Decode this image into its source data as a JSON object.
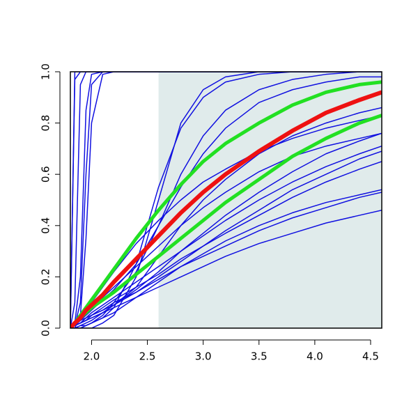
{
  "chart_data": {
    "type": "line",
    "x": [
      1.81,
      1.85,
      1.9,
      1.95,
      2.0,
      2.1,
      2.2,
      2.4,
      2.6,
      2.8,
      3.0,
      3.2,
      3.5,
      3.8,
      4.1,
      4.4,
      4.6
    ],
    "xlim": [
      1.81,
      4.6
    ],
    "ylim": [
      0,
      1
    ],
    "xticks": [
      {
        "value": 2,
        "label": "2.0"
      },
      2.5,
      {
        "value": 3,
        "label": "3.0"
      },
      3.5,
      {
        "value": 4,
        "label": "4.0"
      },
      4.5
    ],
    "yticks": [
      {
        "value": 0,
        "label": "0.0"
      },
      0.2,
      0.4,
      0.6,
      0.8,
      {
        "value": 1,
        "label": "1.0"
      }
    ],
    "highlight_xrange": [
      2.6,
      4.6
    ],
    "highlight_color": "#e0ebeb",
    "series": [
      {
        "color": "#1010e0",
        "line_width": 1.5,
        "values": [
          0,
          1,
          1,
          1,
          1,
          1,
          1,
          1,
          1,
          1,
          1,
          1,
          1,
          1,
          1,
          1,
          1
        ]
      },
      {
        "color": "#1010e0",
        "line_width": 1.5,
        "values": [
          0,
          0.97,
          1,
          1,
          1,
          1,
          1,
          1,
          1,
          1,
          1,
          1,
          1,
          1,
          1,
          1,
          1
        ]
      },
      {
        "color": "#1010e0",
        "line_width": 1.5,
        "values": [
          0,
          0.1,
          0.95,
          1,
          1,
          1,
          1,
          1,
          1,
          1,
          1,
          1,
          1,
          1,
          1,
          1,
          1
        ]
      },
      {
        "color": "#1010e0",
        "line_width": 1.5,
        "values": [
          0,
          0.02,
          0.2,
          0.85,
          0.99,
          1,
          1,
          1,
          1,
          1,
          1,
          1,
          1,
          1,
          1,
          1,
          1
        ]
      },
      {
        "color": "#1010e0",
        "line_width": 1.5,
        "values": [
          0,
          0.01,
          0.1,
          0.6,
          0.95,
          1,
          1,
          1,
          1,
          1,
          1,
          1,
          1,
          1,
          1,
          1,
          1
        ]
      },
      {
        "color": "#1010e0",
        "line_width": 1.5,
        "values": [
          0,
          0,
          0.05,
          0.35,
          0.8,
          0.99,
          1,
          1,
          1,
          1,
          1,
          1,
          1,
          1,
          1,
          1,
          1
        ]
      },
      {
        "color": "#1010e0",
        "line_width": 1.5,
        "values": [
          0,
          0,
          0,
          0,
          0,
          0.02,
          0.05,
          0.2,
          0.5,
          0.8,
          0.93,
          0.98,
          1,
          1,
          1,
          1,
          1
        ]
      },
      {
        "color": "#1010e0",
        "line_width": 1.5,
        "values": [
          0,
          0,
          0,
          0.01,
          0.02,
          0.04,
          0.08,
          0.25,
          0.55,
          0.78,
          0.9,
          0.96,
          0.99,
          1,
          1,
          1,
          1
        ]
      },
      {
        "color": "#1010e0",
        "line_width": 1.5,
        "values": [
          0,
          0,
          0,
          0.01,
          0.02,
          0.05,
          0.1,
          0.22,
          0.4,
          0.6,
          0.75,
          0.85,
          0.93,
          0.97,
          0.99,
          1,
          1
        ]
      },
      {
        "color": "#1010e0",
        "line_width": 1.5,
        "values": [
          0,
          0.01,
          0.03,
          0.05,
          0.07,
          0.11,
          0.15,
          0.25,
          0.4,
          0.55,
          0.68,
          0.78,
          0.88,
          0.93,
          0.96,
          0.98,
          0.98
        ]
      },
      {
        "color": "#1010e0",
        "line_width": 1.5,
        "values": [
          0,
          0.02,
          0.04,
          0.06,
          0.08,
          0.12,
          0.16,
          0.24,
          0.32,
          0.4,
          0.47,
          0.53,
          0.61,
          0.67,
          0.71,
          0.74,
          0.76
        ]
      },
      {
        "color": "#1010e0",
        "line_width": 1.5,
        "values": [
          0,
          0.01,
          0.03,
          0.04,
          0.06,
          0.09,
          0.12,
          0.18,
          0.24,
          0.3,
          0.36,
          0.42,
          0.5,
          0.57,
          0.63,
          0.68,
          0.71
        ]
      },
      {
        "color": "#1010e0",
        "line_width": 1.5,
        "values": [
          0,
          0.01,
          0.02,
          0.04,
          0.05,
          0.08,
          0.11,
          0.16,
          0.21,
          0.27,
          0.32,
          0.37,
          0.44,
          0.51,
          0.57,
          0.62,
          0.65
        ]
      },
      {
        "color": "#1010e0",
        "line_width": 1.5,
        "values": [
          0,
          0.01,
          0.02,
          0.03,
          0.05,
          0.07,
          0.1,
          0.14,
          0.19,
          0.24,
          0.28,
          0.32,
          0.38,
          0.43,
          0.47,
          0.51,
          0.53
        ]
      },
      {
        "color": "#1010e0",
        "line_width": 1.5,
        "values": [
          0,
          0.01,
          0.02,
          0.03,
          0.04,
          0.06,
          0.08,
          0.12,
          0.16,
          0.2,
          0.24,
          0.28,
          0.33,
          0.37,
          0.41,
          0.44,
          0.46
        ]
      },
      {
        "color": "#1010e0",
        "line_width": 1.5,
        "values": [
          0,
          0.01,
          0.02,
          0.03,
          0.04,
          0.06,
          0.09,
          0.15,
          0.22,
          0.3,
          0.37,
          0.44,
          0.53,
          0.61,
          0.68,
          0.73,
          0.76
        ]
      },
      {
        "color": "#1010e0",
        "line_width": 1.5,
        "values": [
          0,
          0,
          0.01,
          0.02,
          0.03,
          0.06,
          0.09,
          0.16,
          0.28,
          0.4,
          0.5,
          0.58,
          0.68,
          0.75,
          0.8,
          0.84,
          0.86
        ]
      },
      {
        "color": "#1010e0",
        "line_width": 1.5,
        "values": [
          0,
          0.02,
          0.04,
          0.07,
          0.1,
          0.16,
          0.22,
          0.33,
          0.42,
          0.5,
          0.57,
          0.62,
          0.69,
          0.74,
          0.78,
          0.81,
          0.83
        ]
      },
      {
        "color": "#1010e0",
        "line_width": 1.5,
        "values": [
          0,
          0.01,
          0.02,
          0.03,
          0.05,
          0.07,
          0.09,
          0.14,
          0.2,
          0.26,
          0.32,
          0.38,
          0.46,
          0.54,
          0.6,
          0.66,
          0.69
        ]
      },
      {
        "color": "#1010e0",
        "line_width": 1.5,
        "values": [
          0,
          0,
          0.01,
          0.01,
          0.02,
          0.04,
          0.06,
          0.12,
          0.18,
          0.24,
          0.29,
          0.34,
          0.4,
          0.45,
          0.49,
          0.52,
          0.54
        ]
      },
      {
        "color": "#22e022",
        "line_width": 5,
        "values": [
          0,
          0.02,
          0.05,
          0.08,
          0.11,
          0.17,
          0.23,
          0.35,
          0.46,
          0.56,
          0.65,
          0.72,
          0.8,
          0.87,
          0.92,
          0.95,
          0.96
        ]
      },
      {
        "color": "#22e022",
        "line_width": 5,
        "values": [
          0,
          0.02,
          0.04,
          0.06,
          0.08,
          0.11,
          0.14,
          0.21,
          0.28,
          0.35,
          0.42,
          0.49,
          0.58,
          0.67,
          0.74,
          0.8,
          0.83
        ]
      },
      {
        "color": "#ee1111",
        "line_width": 6,
        "values": [
          0,
          0.02,
          0.04,
          0.07,
          0.09,
          0.13,
          0.18,
          0.27,
          0.36,
          0.45,
          0.53,
          0.6,
          0.69,
          0.77,
          0.84,
          0.89,
          0.92
        ]
      }
    ]
  }
}
